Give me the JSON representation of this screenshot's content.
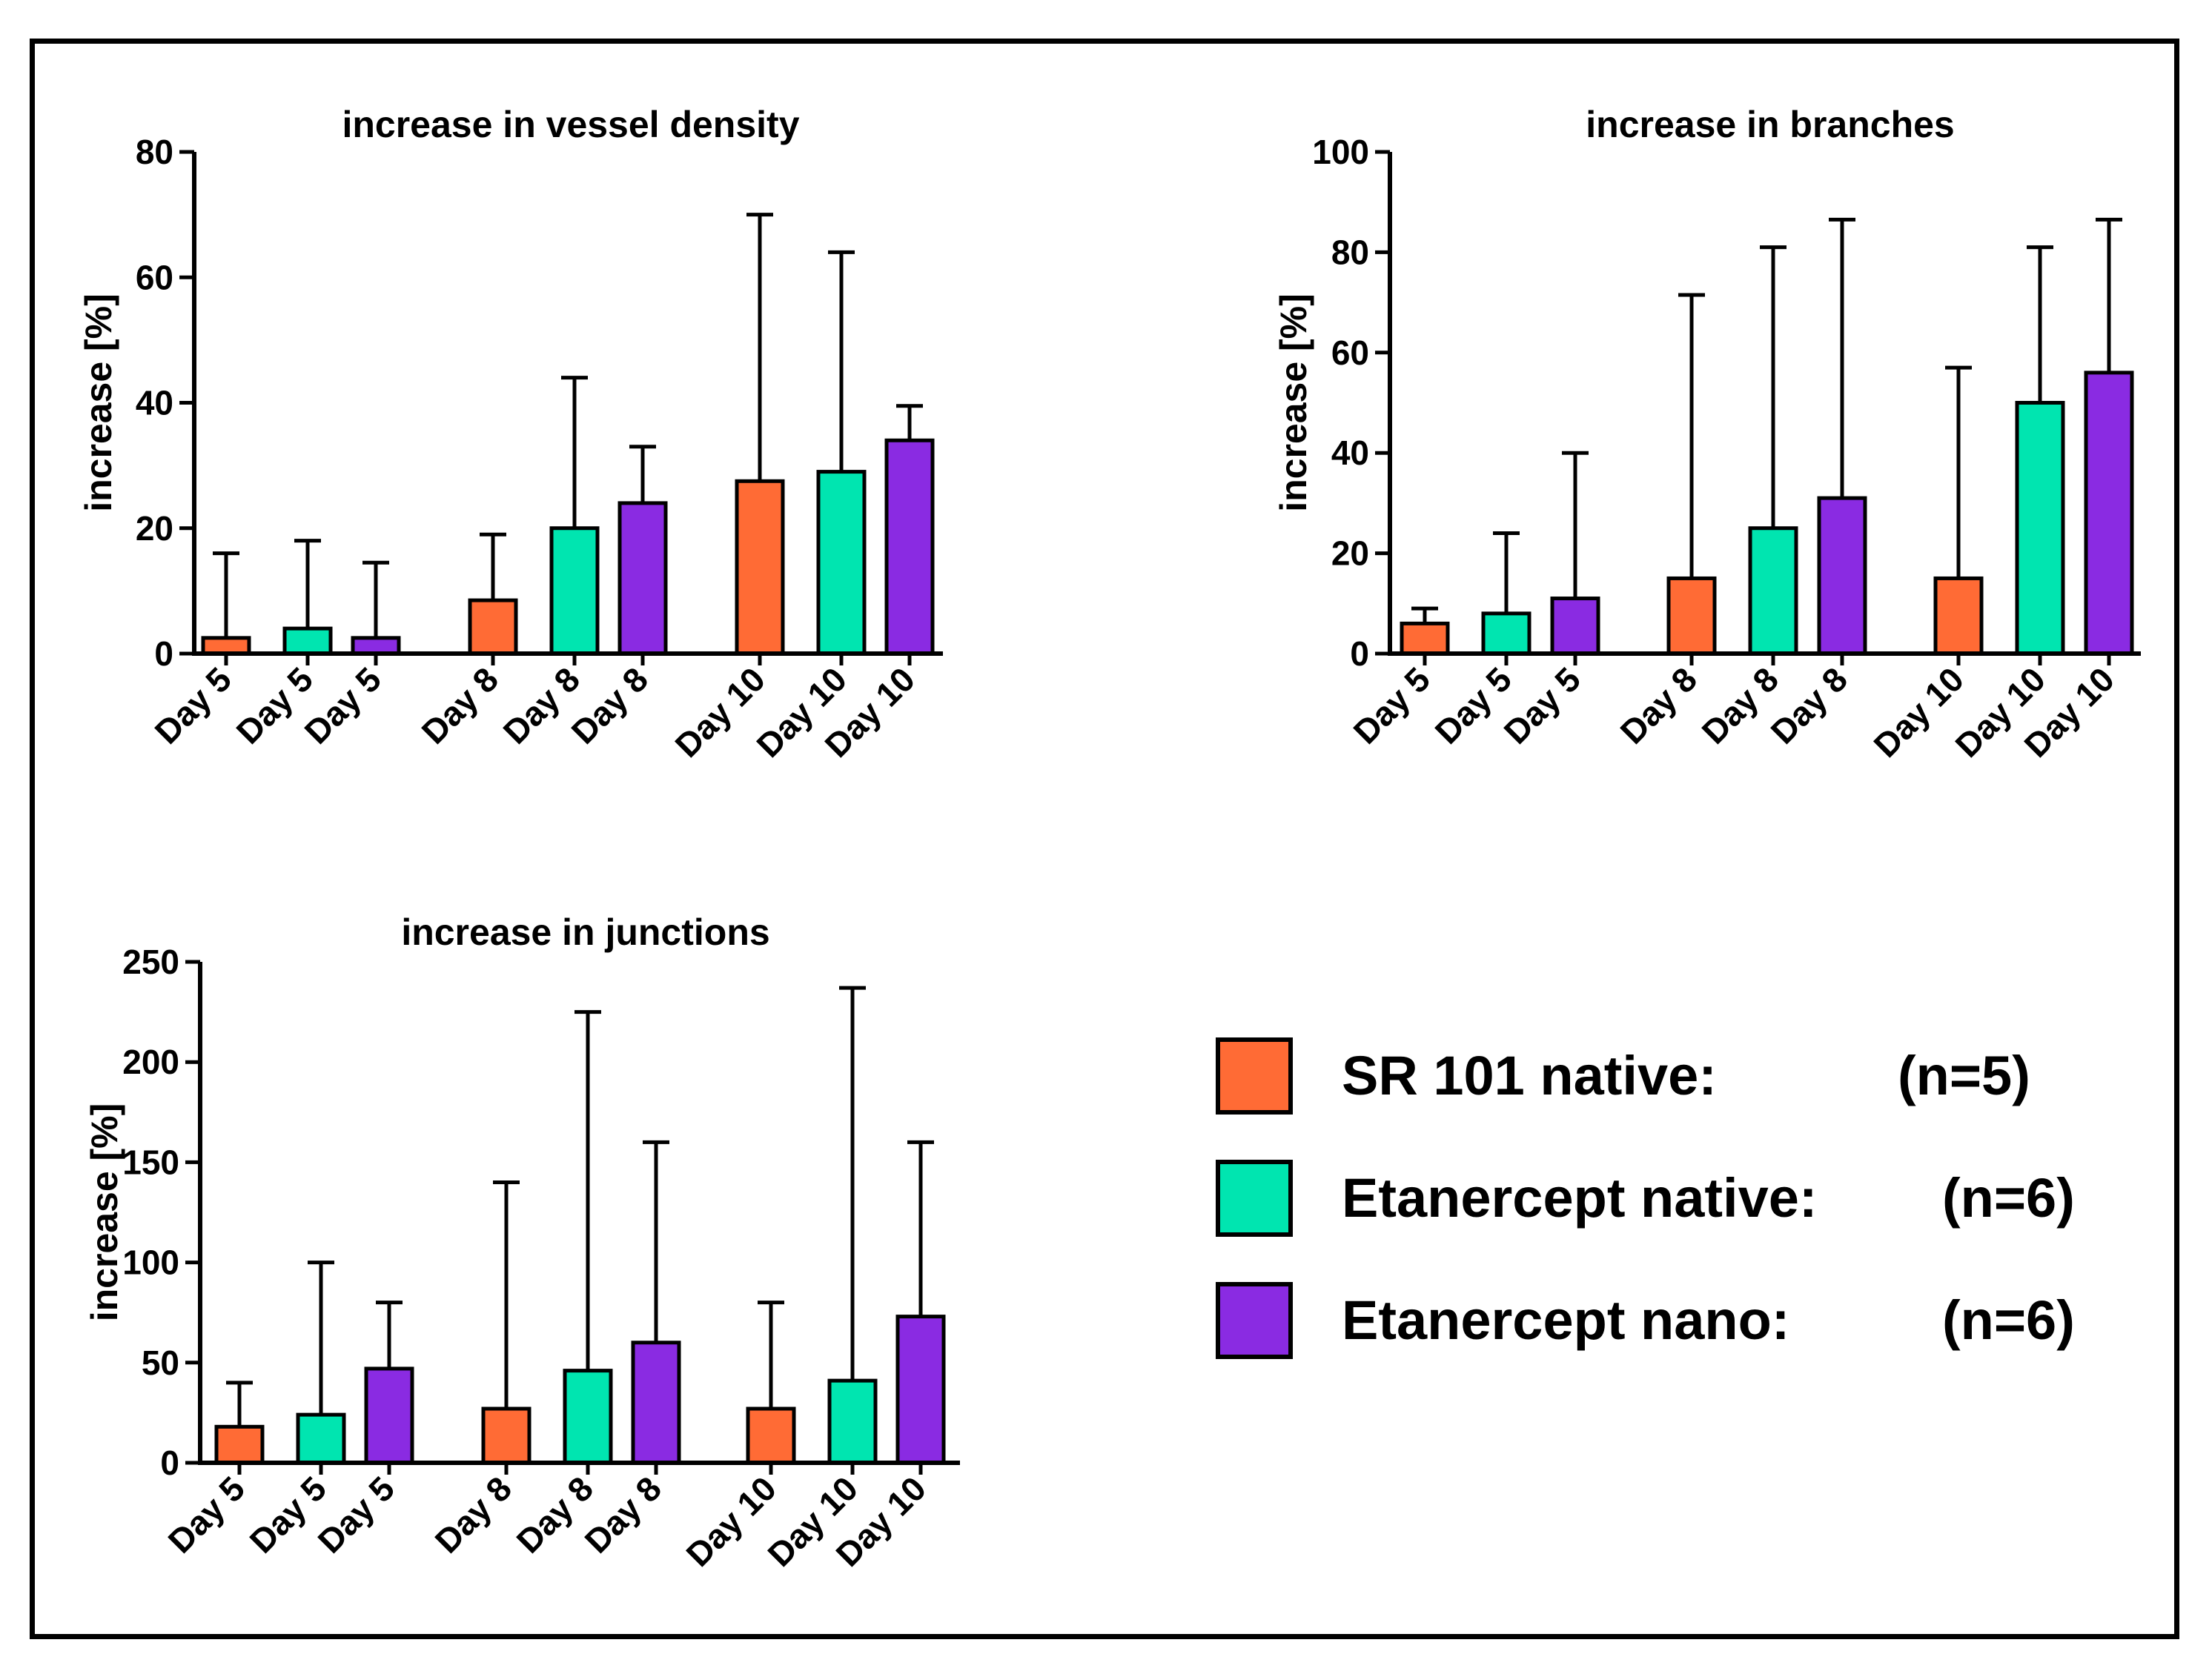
{
  "colors": {
    "sr101": "#ff6b35",
    "etanercept_native": "#00e5b0",
    "etanercept_nano": "#8a2be2",
    "axis": "#000000"
  },
  "chart_data": [
    {
      "type": "bar",
      "title": "increase in vessel density",
      "ylabel": "increase [%]",
      "xlabel": "",
      "ylim": [
        0,
        80
      ],
      "yticks": [
        0,
        20,
        40,
        60,
        80
      ],
      "categories": [
        "Day 5",
        "Day 5",
        "Day 5",
        "Day 8",
        "Day 8",
        "Day 8",
        "Day 10",
        "Day 10",
        "Day 10"
      ],
      "groups": [
        "sr101",
        "etanercept_native",
        "etanercept_nano",
        "sr101",
        "etanercept_native",
        "etanercept_nano",
        "sr101",
        "etanercept_native",
        "etanercept_nano"
      ],
      "values": [
        2.5,
        4,
        2.5,
        8.5,
        20,
        24,
        27.5,
        29,
        34
      ],
      "error_upper": [
        16,
        18,
        14.5,
        19,
        44,
        33,
        70,
        64,
        39.5
      ]
    },
    {
      "type": "bar",
      "title": "increase in branches",
      "ylabel": "increase [%]",
      "xlabel": "",
      "ylim": [
        0,
        100
      ],
      "yticks": [
        0,
        20,
        40,
        60,
        80,
        100
      ],
      "categories": [
        "Day 5",
        "Day 5",
        "Day 5",
        "Day 8",
        "Day 8",
        "Day 8",
        "Day 10",
        "Day 10",
        "Day 10"
      ],
      "groups": [
        "sr101",
        "etanercept_native",
        "etanercept_nano",
        "sr101",
        "etanercept_native",
        "etanercept_nano",
        "sr101",
        "etanercept_native",
        "etanercept_nano"
      ],
      "values": [
        6,
        8,
        11,
        15,
        25,
        31,
        15,
        50,
        56
      ],
      "error_upper": [
        9,
        24,
        40,
        71.5,
        81,
        86.5,
        57,
        81,
        86.5
      ]
    },
    {
      "type": "bar",
      "title": "increase in junctions",
      "ylabel": "increase [%]",
      "xlabel": "",
      "ylim": [
        0,
        250
      ],
      "yticks": [
        0,
        50,
        100,
        150,
        200,
        250
      ],
      "categories": [
        "Day 5",
        "Day 5",
        "Day 5",
        "Day 8",
        "Day 8",
        "Day 8",
        "Day 10",
        "Day 10",
        "Day 10"
      ],
      "groups": [
        "sr101",
        "etanercept_native",
        "etanercept_nano",
        "sr101",
        "etanercept_native",
        "etanercept_nano",
        "sr101",
        "etanercept_native",
        "etanercept_nano"
      ],
      "values": [
        18,
        24,
        47,
        27,
        46,
        60,
        27,
        41,
        73
      ],
      "error_upper": [
        40,
        100,
        80,
        140,
        225,
        160,
        80,
        237,
        160
      ]
    }
  ],
  "legend": {
    "position": "bottom-right",
    "items": [
      {
        "key": "sr101",
        "label": "SR 101 native:",
        "n": "(n=5)"
      },
      {
        "key": "etanercept_native",
        "label": "Etanercept native:",
        "n": "(n=6)"
      },
      {
        "key": "etanercept_nano",
        "label": "Etanercept nano:",
        "n": "(n=6)"
      }
    ]
  }
}
